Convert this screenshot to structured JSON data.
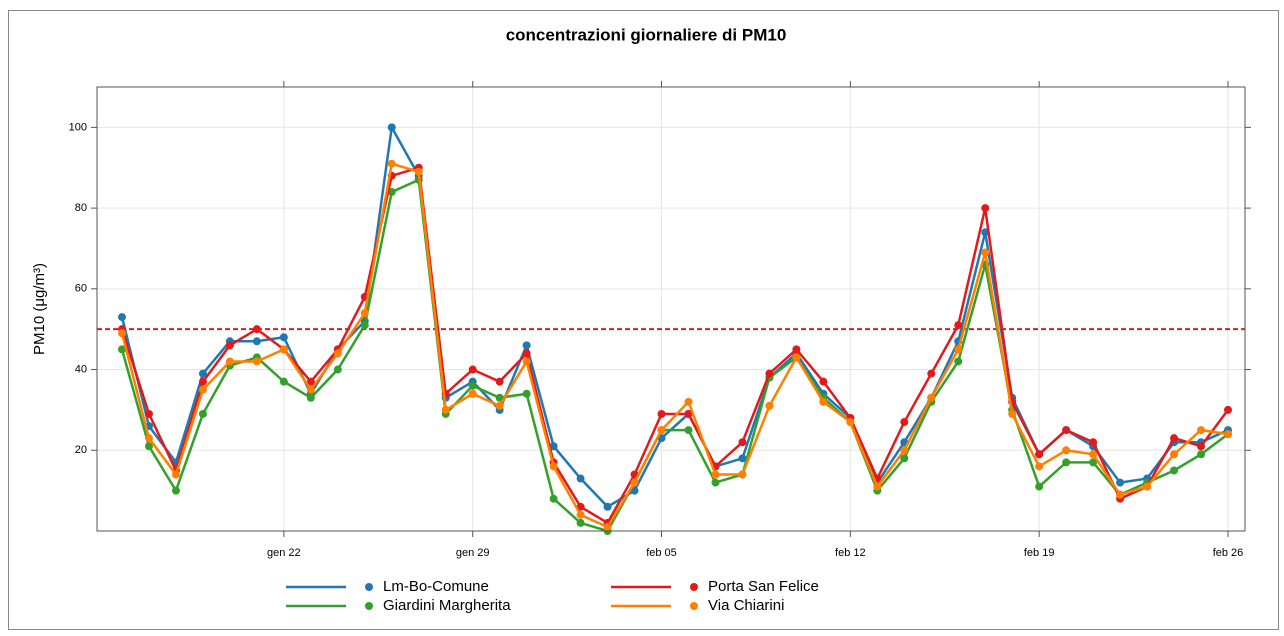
{
  "chart_data": {
    "type": "line",
    "title": "concentrazioni giornaliere di PM10",
    "y_label": "PM10 (μg/m³)",
    "categories": [
      null,
      null,
      null,
      null,
      null,
      null,
      "gen 22",
      null,
      null,
      null,
      null,
      null,
      null,
      "gen 29",
      null,
      null,
      null,
      null,
      null,
      null,
      "feb 05",
      null,
      null,
      null,
      null,
      null,
      null,
      "feb 12",
      null,
      null,
      null,
      null,
      null,
      null,
      "feb 19",
      null,
      null,
      null,
      null,
      null,
      null,
      "feb 26"
    ],
    "series": [
      {
        "name": "Lm-Bo-Comune",
        "color": "#1f78b4",
        "values": [
          53,
          26,
          17,
          39,
          47,
          47,
          48,
          34,
          45,
          52,
          100,
          88,
          33,
          37,
          30,
          46,
          21,
          13,
          6,
          10,
          23,
          29,
          16,
          18,
          38,
          44,
          34,
          28,
          12,
          22,
          33,
          47,
          74,
          33,
          19,
          25,
          21,
          12,
          13,
          22,
          22,
          25
        ]
      },
      {
        "name": "Giardini Margherita",
        "color": "#33a02c",
        "values": [
          45,
          21,
          10,
          29,
          41,
          43,
          37,
          33,
          40,
          51,
          84,
          87,
          29,
          36,
          33,
          34,
          8,
          2,
          0,
          12,
          25,
          25,
          12,
          14,
          38,
          43,
          33,
          27,
          10,
          18,
          32,
          42,
          66,
          30,
          11,
          17,
          17,
          9,
          12,
          15,
          19,
          24
        ]
      },
      {
        "name": "Porta San Felice",
        "color": "#e31a1c",
        "values": [
          50,
          29,
          15,
          37,
          46,
          50,
          45,
          37,
          45,
          58,
          88,
          90,
          34,
          40,
          37,
          44,
          17,
          6,
          2,
          14,
          29,
          29,
          16,
          22,
          39,
          45,
          37,
          28,
          13,
          27,
          39,
          51,
          80,
          32,
          19,
          25,
          22,
          8,
          11,
          23,
          21,
          30
        ]
      },
      {
        "name": "Via Chiarini",
        "color": "#ff7f00",
        "values": [
          49,
          23,
          14,
          35,
          42,
          42,
          45,
          35,
          44,
          54,
          91,
          89,
          30,
          34,
          31,
          42,
          16,
          4,
          1,
          12,
          25,
          32,
          14,
          14,
          31,
          43,
          32,
          27,
          11,
          20,
          33,
          45,
          69,
          29,
          16,
          20,
          19,
          9,
          11,
          19,
          25,
          24
        ]
      }
    ],
    "ylim": [
      0,
      110
    ],
    "yticks": [
      20,
      40,
      60,
      80,
      100
    ],
    "grid": true,
    "reference_line": {
      "value": 50,
      "color": "#e31a1c"
    }
  }
}
